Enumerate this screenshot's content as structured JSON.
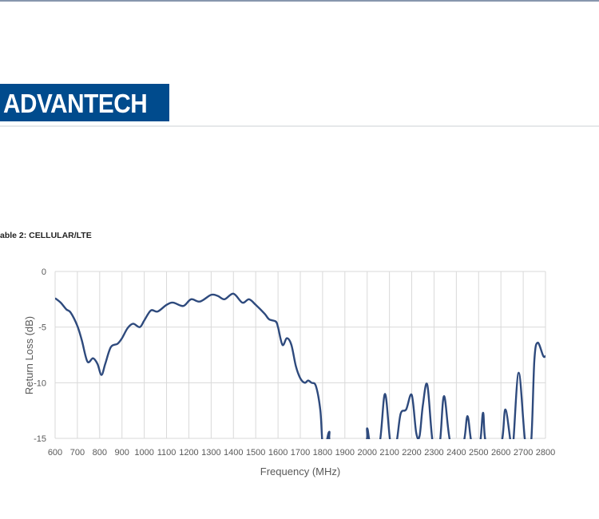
{
  "header": {
    "logo_text": "ADVANTECH",
    "brand_color": "#004b8d"
  },
  "caption": "able 2: CELLULAR/LTE",
  "chart_data": {
    "type": "line",
    "title": "",
    "xlabel": "Frequency (MHz)",
    "ylabel": "Return Loss (dB)",
    "xlim": [
      600,
      2800
    ],
    "ylim": [
      -15,
      0
    ],
    "xticks": [
      "600",
      "700",
      "800",
      "900",
      "1000",
      "1100",
      "1200",
      "1300",
      "1400",
      "1500",
      "1600",
      "1700",
      "1800",
      "1900",
      "2000",
      "2100",
      "2200",
      "2300",
      "2400",
      "2500",
      "2600",
      "2700",
      "2800"
    ],
    "yticks": [
      "0",
      "-5",
      "-10",
      "-15"
    ],
    "grid": true,
    "line_color": "#2e4a7d",
    "series": [
      {
        "x": [
          600,
          625,
          650,
          670,
          700,
          720,
          745,
          770,
          790,
          808,
          825,
          850,
          880,
          900,
          925,
          950,
          980,
          1000,
          1030,
          1060,
          1100,
          1130,
          1175,
          1210,
          1250,
          1300,
          1330,
          1360,
          1400,
          1440,
          1470,
          1500,
          1540,
          1560,
          1590,
          1600,
          1620,
          1640,
          1660,
          1680,
          1700,
          1720,
          1735,
          1750,
          1770,
          1790,
          1800,
          1815,
          1830,
          1845,
          1985,
          2000,
          2015,
          2055,
          2080,
          2105,
          2130,
          2150,
          2175,
          2200,
          2220,
          2235,
          2250,
          2270,
          2295,
          2325,
          2345,
          2375,
          2430,
          2450,
          2470,
          2505,
          2520,
          2535,
          2600,
          2620,
          2645,
          2655,
          2680,
          2710,
          2735,
          2750,
          2765,
          2790,
          2800
        ],
        "y": [
          -2.4,
          -2.8,
          -3.4,
          -3.7,
          -4.9,
          -6.2,
          -8.1,
          -7.8,
          -8.3,
          -9.3,
          -8.3,
          -6.8,
          -6.5,
          -6.0,
          -5.1,
          -4.7,
          -5.0,
          -4.4,
          -3.5,
          -3.6,
          -3.0,
          -2.8,
          -3.1,
          -2.5,
          -2.7,
          -2.1,
          -2.2,
          -2.5,
          -2.0,
          -2.8,
          -2.5,
          -3.0,
          -3.8,
          -4.3,
          -4.5,
          -5.0,
          -6.6,
          -6.0,
          -6.6,
          -8.5,
          -9.6,
          -10.0,
          -9.8,
          -10.0,
          -10.3,
          -12.5,
          -15.5,
          -15.5,
          -14.4,
          -15.5,
          -15.5,
          -14.1,
          -15.5,
          -15.5,
          -11.0,
          -15.5,
          -15.5,
          -12.8,
          -12.4,
          -11.1,
          -14.5,
          -14.8,
          -12.0,
          -10.2,
          -15.5,
          -15.5,
          -11.2,
          -15.5,
          -15.5,
          -13.0,
          -15.5,
          -15.5,
          -12.7,
          -15.5,
          -15.5,
          -12.4,
          -15.5,
          -15.5,
          -9.1,
          -15.5,
          -15.5,
          -8.0,
          -6.4,
          -7.6,
          -7.6
        ]
      }
    ]
  }
}
